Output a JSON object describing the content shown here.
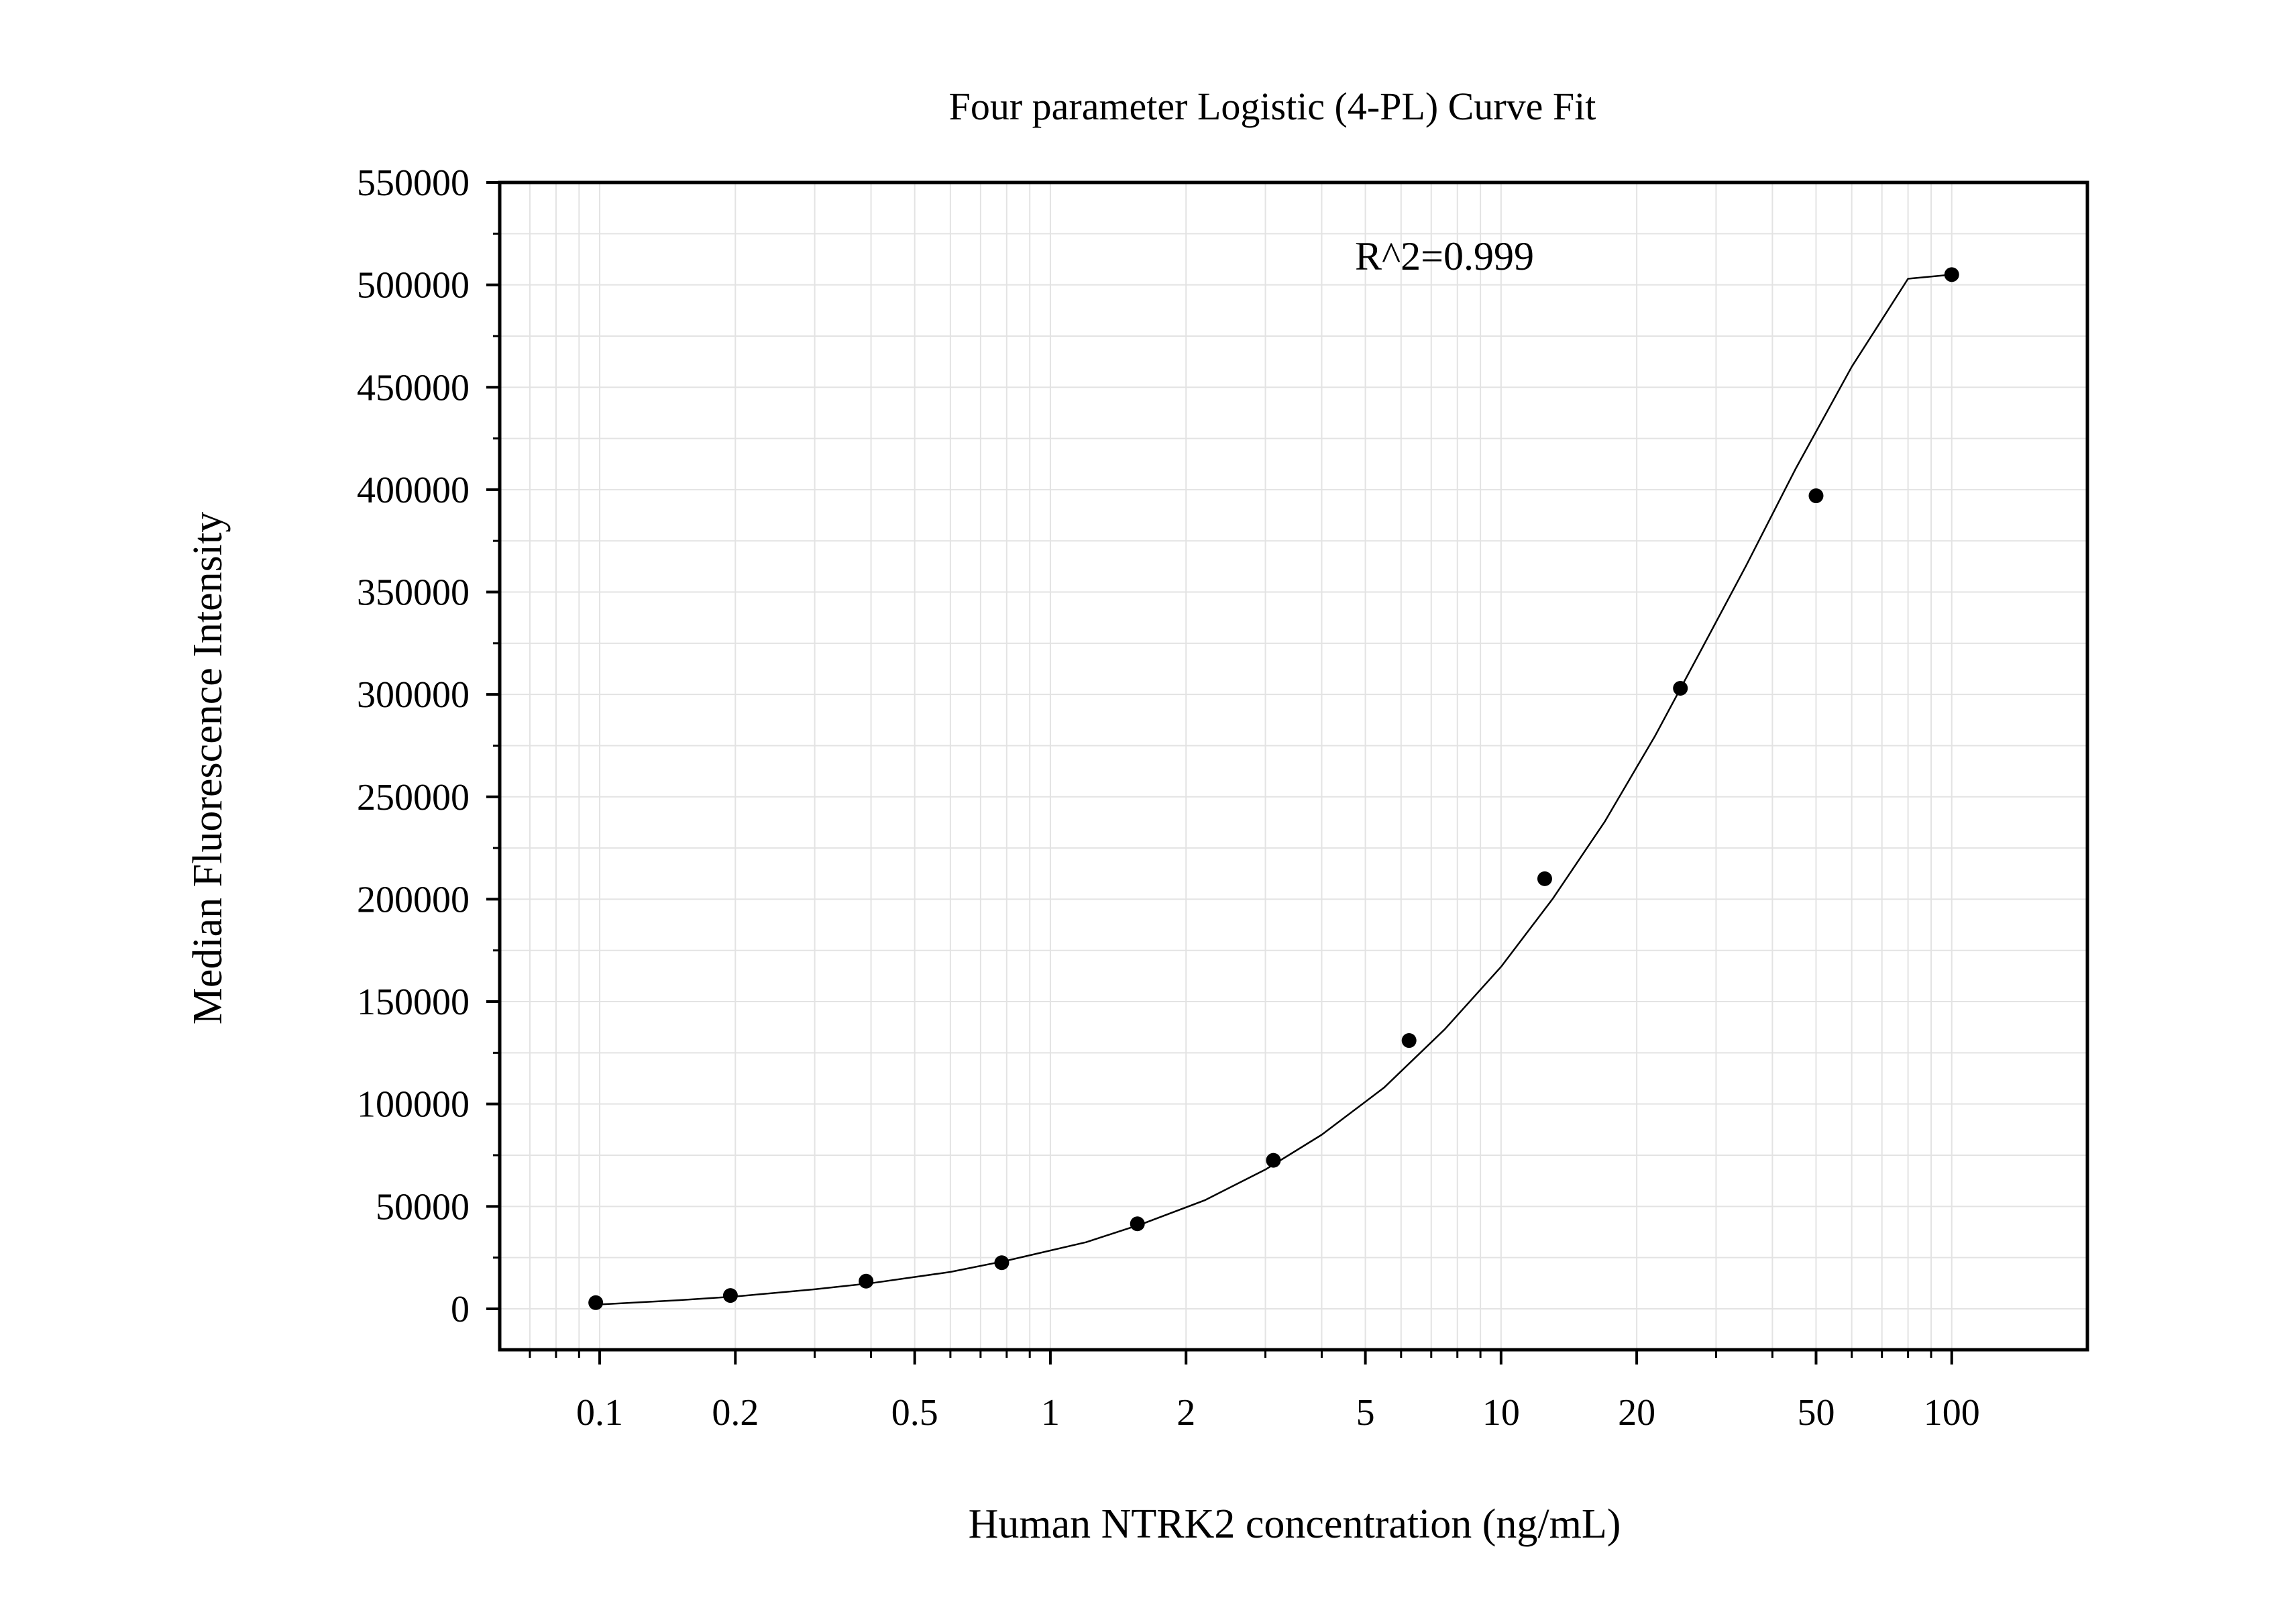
{
  "chart_data": {
    "type": "scatter",
    "title": "Four parameter Logistic (4-PL) Curve Fit",
    "xlabel": "Human NTRK2 concentration (ng/mL)",
    "ylabel": "Median Fluorescence Intensity",
    "x_scale": "log",
    "xlim": [
      0.06,
      200
    ],
    "ylim": [
      -20000,
      550000
    ],
    "x_ticks": [
      0.1,
      0.2,
      0.5,
      1,
      2,
      5,
      10,
      20,
      50,
      100
    ],
    "x_tick_labels": [
      "0.1",
      "0.2",
      "0.5",
      "1",
      "2",
      "5",
      "10",
      "20",
      "50",
      "100"
    ],
    "y_ticks": [
      0,
      50000,
      100000,
      150000,
      200000,
      250000,
      300000,
      350000,
      400000,
      450000,
      500000,
      550000
    ],
    "y_tick_labels": [
      "0",
      "50000",
      "100000",
      "150000",
      "200000",
      "250000",
      "300000",
      "350000",
      "400000",
      "450000",
      "500000",
      "550000"
    ],
    "grid": true,
    "annotation": "R^2=0.999",
    "series": [
      {
        "x": [
          0.098,
          0.195,
          0.39,
          0.78,
          1.56,
          3.125,
          6.25,
          12.5,
          25,
          50,
          100
        ],
        "y": [
          3000,
          6500,
          13500,
          22500,
          41500,
          72500,
          131000,
          210000,
          303000,
          397000,
          505000
        ]
      }
    ],
    "fit_curve": {
      "x": [
        0.098,
        0.15,
        0.2,
        0.3,
        0.4,
        0.6,
        0.8,
        1.2,
        1.6,
        2.2,
        3.0,
        4.0,
        5.5,
        7.5,
        10,
        13,
        17,
        22,
        28,
        35,
        45,
        60,
        80,
        100
      ],
      "y": [
        2000,
        4200,
        6000,
        9500,
        12500,
        18000,
        23500,
        32500,
        41500,
        53000,
        68000,
        85000,
        108000,
        136500,
        167000,
        200000,
        238000,
        280000,
        323000,
        363000,
        410000,
        460000,
        503000,
        505000
      ]
    },
    "colors": {
      "points": "#000000",
      "curve": "#000000",
      "grid": "#e3e3e3",
      "axes": "#000000"
    }
  }
}
